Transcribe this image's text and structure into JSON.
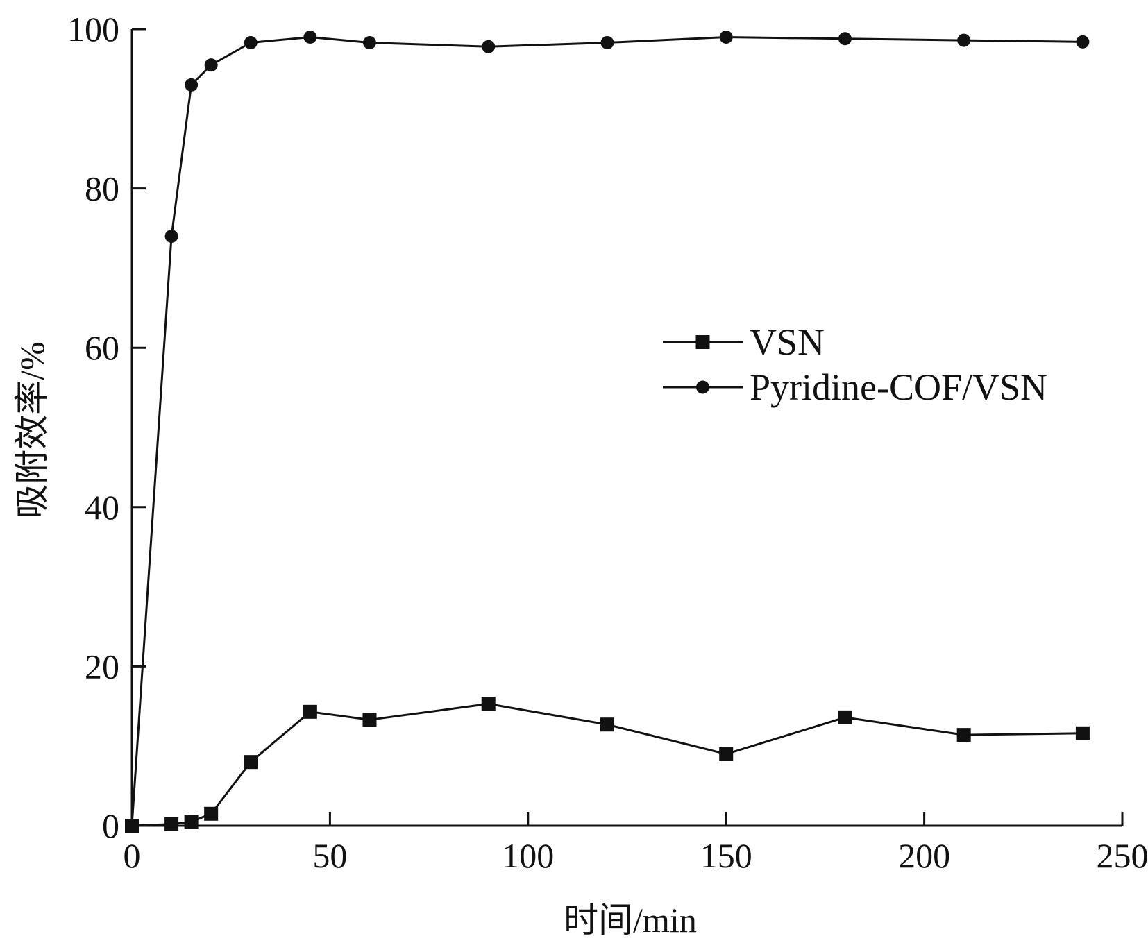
{
  "chart_data": {
    "type": "line",
    "title": "",
    "xlabel": "时间/min",
    "ylabel": "吸附效率/%",
    "xlim": [
      0,
      250
    ],
    "ylim": [
      0,
      100
    ],
    "xticks": [
      0,
      50,
      100,
      150,
      200,
      250
    ],
    "yticks": [
      0,
      20,
      40,
      60,
      80,
      100
    ],
    "grid": false,
    "legend_position": "right-middle",
    "color": "#111111",
    "series": [
      {
        "name": "VSN",
        "marker": "square",
        "x": [
          0,
          10,
          15,
          20,
          30,
          45,
          60,
          90,
          120,
          150,
          180,
          210,
          240
        ],
        "y": [
          0,
          0.2,
          0.5,
          1.5,
          8.0,
          14.3,
          13.3,
          15.3,
          12.7,
          9.0,
          13.6,
          11.4,
          11.6
        ]
      },
      {
        "name": "Pyridine-COF/VSN",
        "marker": "circle",
        "x": [
          0,
          10,
          15,
          20,
          30,
          45,
          60,
          90,
          120,
          150,
          180,
          210,
          240
        ],
        "y": [
          0,
          74.0,
          93.0,
          95.5,
          98.3,
          99.0,
          98.3,
          97.8,
          98.3,
          99.0,
          98.8,
          98.6,
          98.4
        ]
      }
    ]
  }
}
